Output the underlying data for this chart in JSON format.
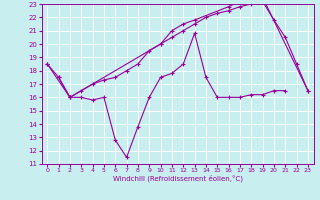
{
  "background_color": "#c8eef0",
  "grid_color": "#ffffff",
  "line_color": "#990099",
  "xlabel": "Windchill (Refroidissement éolien,°C)",
  "xlim": [
    -0.5,
    23.5
  ],
  "ylim": [
    11,
    23
  ],
  "xticks": [
    0,
    1,
    2,
    3,
    4,
    5,
    6,
    7,
    8,
    9,
    10,
    11,
    12,
    13,
    14,
    15,
    16,
    17,
    18,
    19,
    20,
    21,
    22,
    23
  ],
  "yticks": [
    11,
    12,
    13,
    14,
    15,
    16,
    17,
    18,
    19,
    20,
    21,
    22,
    23
  ],
  "line1_x": [
    0,
    1,
    2,
    3,
    4,
    5,
    6,
    7,
    8,
    9,
    10,
    11,
    12,
    13,
    14,
    15,
    16,
    17,
    18,
    19,
    20,
    21
  ],
  "line1_y": [
    18.5,
    17.5,
    16.0,
    16.0,
    15.8,
    16.0,
    12.8,
    11.5,
    13.8,
    16.0,
    17.5,
    17.8,
    18.5,
    20.8,
    17.5,
    16.0,
    16.0,
    16.0,
    16.2,
    16.2,
    16.5,
    16.5
  ],
  "line2_x": [
    0,
    2,
    3,
    4,
    5,
    6,
    7,
    8,
    9,
    10,
    11,
    12,
    13,
    14,
    15,
    16,
    17,
    18,
    19,
    20,
    21,
    22,
    23
  ],
  "line2_y": [
    18.5,
    16.0,
    16.5,
    17.0,
    17.3,
    17.5,
    18.0,
    18.5,
    19.5,
    20.0,
    20.5,
    21.0,
    21.5,
    22.0,
    22.3,
    22.5,
    22.8,
    23.0,
    23.2,
    21.8,
    20.5,
    18.5,
    16.5
  ],
  "line3_x": [
    1,
    2,
    10,
    11,
    12,
    13,
    16,
    17,
    18,
    19,
    23
  ],
  "line3_y": [
    17.5,
    16.0,
    20.0,
    21.0,
    21.5,
    21.8,
    22.8,
    23.2,
    23.3,
    23.5,
    16.5
  ]
}
